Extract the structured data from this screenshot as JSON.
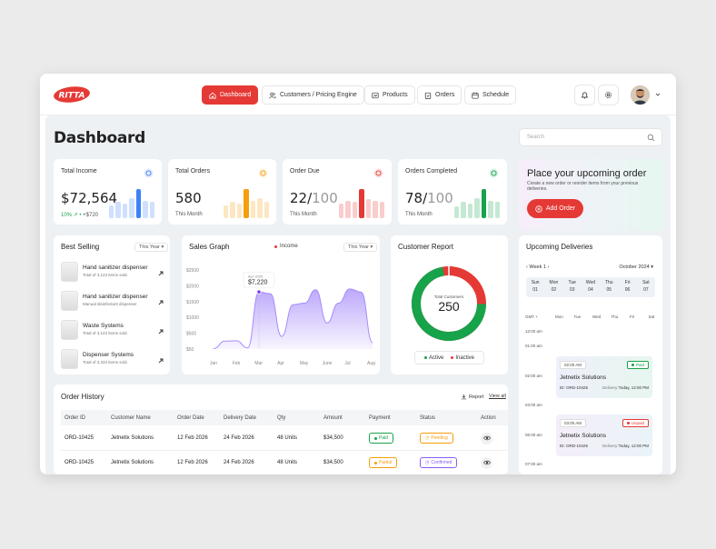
{
  "brand": {
    "logo_text": "RITTA",
    "accent": "#e53935"
  },
  "nav": [
    {
      "label": "Dashboard",
      "icon": "home-icon",
      "active": true
    },
    {
      "label": "Customers / Pricing Engine",
      "icon": "users-icon",
      "active": false
    },
    {
      "label": "Products",
      "icon": "products-icon",
      "active": false
    },
    {
      "label": "Orders",
      "icon": "clipboard-icon",
      "active": false
    },
    {
      "label": "Schedule",
      "icon": "calendar-icon",
      "active": false
    }
  ],
  "page": {
    "title": "Dashboard",
    "search_placeholder": "Search"
  },
  "kpis": [
    {
      "label": "Total Income",
      "value": "$72,564",
      "value_suffix": "",
      "sub_green": "10%",
      "sub": "+$720",
      "icon": "money-icon",
      "icon_color": "#3b82f6",
      "bars_color": "#3b82f6",
      "bars": [
        0.45,
        0.55,
        0.5,
        0.7,
        1.0,
        0.6,
        0.55
      ]
    },
    {
      "label": "Total Orders",
      "value": "580",
      "value_suffix": "",
      "sub_green": "",
      "sub": "This Month",
      "icon": "cart-icon",
      "icon_color": "#f59e0b",
      "bars_color": "#f59e0b",
      "bars": [
        0.45,
        0.55,
        0.5,
        1.0,
        0.6,
        0.7,
        0.55
      ]
    },
    {
      "label": "Order Due",
      "value": "22/",
      "value_suffix": "100",
      "sub_green": "",
      "sub": "This Month",
      "icon": "clock-icon",
      "icon_color": "#e53935",
      "bars_color": "#e53935",
      "bars": [
        0.5,
        0.6,
        0.55,
        1.0,
        0.65,
        0.6,
        0.55
      ]
    },
    {
      "label": "Orders Completed",
      "value": "78/",
      "value_suffix": "100",
      "sub_green": "",
      "sub": "This Month",
      "icon": "check-circle-icon",
      "icon_color": "#16a34a",
      "bars_color": "#16a34a",
      "bars": [
        0.4,
        0.55,
        0.5,
        0.7,
        1.0,
        0.6,
        0.55
      ]
    }
  ],
  "promo": {
    "title": "Place your upcoming order",
    "text": "Create a new order or reorder items from your previous deliveries.",
    "button": "Add Order"
  },
  "best_selling": {
    "title": "Best Selling",
    "filter": "This Year",
    "items": [
      {
        "name": "Hand sanitizer dispenser",
        "desc": "Total of 3,123 items sold."
      },
      {
        "name": "Hand sanitizer dispenser",
        "desc": "Manual disinfectant dispenser"
      },
      {
        "name": "Waste Systems",
        "desc": "Total of 3,123 items sold."
      },
      {
        "name": "Dispenser Systems",
        "desc": "Total of 3,333 items sold."
      }
    ]
  },
  "chart_data": {
    "type": "area",
    "title": "Sales Graph",
    "legend": "Income",
    "filter": "This Year",
    "categories": [
      "Jan",
      "Feb",
      "Mar",
      "Apr",
      "May",
      "June",
      "Jul",
      "Aug"
    ],
    "x": [
      0,
      0.5,
      1,
      1.5,
      2,
      2.5,
      3,
      3.5,
      4,
      4.5,
      5,
      5.5,
      6,
      6.5,
      7
    ],
    "values": [
      50,
      1000,
      1050,
      150,
      7220,
      7000,
      1600,
      5600,
      5800,
      7500,
      3300,
      5800,
      7600,
      7200,
      800
    ],
    "yticks": [
      "$50",
      "$500",
      "$1000",
      "$1500",
      "$2000",
      "$2500"
    ],
    "ylim": [
      0,
      10000
    ],
    "tooltip": {
      "label": "Apr 2025",
      "value": "$7,220"
    },
    "color": "#a78bfa"
  },
  "customer_report": {
    "title": "Customer Report",
    "center_label": "Total Customers",
    "center_value": "250",
    "active_fraction": 0.72,
    "legend": [
      {
        "label": "Active",
        "color": "#16a34a"
      },
      {
        "label": "Inactive",
        "color": "#e53935"
      }
    ]
  },
  "deliveries": {
    "title": "Upcoming Deliveries",
    "week": "Week 1",
    "month": "October 2024",
    "days": [
      {
        "d": "Sun",
        "n": "01"
      },
      {
        "d": "Mon",
        "n": "02"
      },
      {
        "d": "Tue",
        "n": "03"
      },
      {
        "d": "Wed",
        "n": "04"
      },
      {
        "d": "Thu",
        "n": "05"
      },
      {
        "d": "Fri",
        "n": "06"
      },
      {
        "d": "Sat",
        "n": "07"
      }
    ],
    "tz": "GMT +",
    "day_abbr": [
      "Mon",
      "Tue",
      "Wed",
      "Thu",
      "Fri",
      "Sat"
    ],
    "times": [
      "12:00 am",
      "01:00 am",
      "02:00 am",
      "03:00 am",
      "06:00 am",
      "07:00 am"
    ],
    "events": [
      {
        "time": "02:00 AM",
        "status": "Paid",
        "status_color": "#16a34a",
        "name": "Jetnetix Solutions",
        "id": "ID: ORD-10425",
        "delivery_label": "Delivery:",
        "delivery": "Today, 12:00 PM",
        "bg": "linear-gradient(90deg,#eef0fb,#e7f6ef)"
      },
      {
        "time": "03:00 AM",
        "status": "Unpaid",
        "status_color": "#e53935",
        "name": "Jetnetix Solutions",
        "id": "ID: ORD-10425",
        "delivery_label": "Delivery:",
        "delivery": "Today, 12:00 PM",
        "bg": "linear-gradient(90deg,#f4eef9,#e9f4f8)"
      }
    ]
  },
  "order_history": {
    "title": "Order History",
    "report_label": "Report",
    "view_all": "View all",
    "columns": [
      "Order ID",
      "Customer Name",
      "Order Date",
      "Delivery Date",
      "Qty",
      "Amount",
      "Payment",
      "Status",
      "Action"
    ],
    "rows": [
      {
        "id": "ORD-10425",
        "customer": "Jetnetix Solutions",
        "order_date": "12 Feb 2026",
        "delivery_date": "24 Feb 2026",
        "qty": "48 Units",
        "amount": "$34,500",
        "payment": "Paid",
        "payment_color": "#16a34a",
        "status": "Pending",
        "status_color": "#f59e0b"
      },
      {
        "id": "ORD-10425",
        "customer": "Jetnetix Solutions",
        "order_date": "12 Feb 2026",
        "delivery_date": "24 Feb 2026",
        "qty": "48 Units",
        "amount": "$34,500",
        "payment": "Partial",
        "payment_color": "#f59e0b",
        "status": "Confirmed",
        "status_color": "#8b5cf6"
      }
    ]
  }
}
